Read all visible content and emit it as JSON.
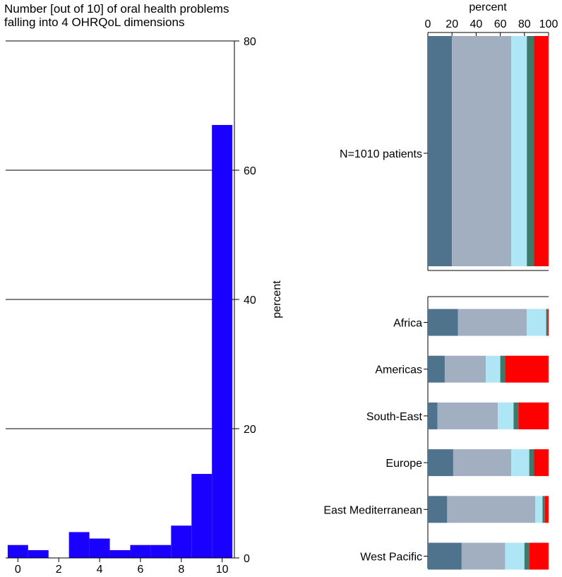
{
  "chart_data": [
    {
      "type": "bar",
      "title_lines": [
        "Number [out of 10] of oral health problems",
        "falling into 4 OHRQoL dimensions"
      ],
      "xlabel": "",
      "ylabel": "percent",
      "x_ticks": [
        "0",
        "2",
        "4",
        "6",
        "8",
        "10"
      ],
      "y_ticks": [
        "0",
        "20",
        "40",
        "60",
        "80"
      ],
      "xlim": [
        -0.6,
        10.6
      ],
      "ylim": [
        0,
        80
      ],
      "categories": [
        "0",
        "1",
        "2",
        "3",
        "4",
        "5",
        "6",
        "7",
        "8",
        "9",
        "10"
      ],
      "values": [
        2.0,
        1.2,
        0.0,
        4.0,
        3.0,
        1.2,
        2.0,
        2.0,
        5.0,
        13.0,
        67.0
      ],
      "bar_color": "#1a00ff",
      "grid": true
    },
    {
      "type": "bar",
      "orientation": "horizontal-stacked",
      "xlabel": "percent",
      "x_ticks": [
        "0",
        "20",
        "40",
        "60",
        "80",
        "100"
      ],
      "xlim": [
        0,
        100
      ],
      "segment_colors": [
        "#4f738d",
        "#a1afc0",
        "#aee6f6",
        "#3c7a6a",
        "#ff0000"
      ],
      "overall": {
        "label": "N=1010 patients",
        "values": [
          20,
          49,
          13,
          6,
          12
        ]
      },
      "regions": [
        {
          "label": "Africa",
          "values": [
            25,
            57,
            16,
            1,
            1
          ]
        },
        {
          "label": "Americas",
          "values": [
            14,
            34,
            12,
            4,
            36
          ]
        },
        {
          "label": "South-East",
          "values": [
            8,
            50,
            13,
            4,
            25
          ]
        },
        {
          "label": "Europe",
          "values": [
            21,
            48,
            15,
            4,
            12
          ]
        },
        {
          "label": "East Mediterranean",
          "values": [
            16,
            73,
            6,
            2,
            3
          ]
        },
        {
          "label": "West Pacific",
          "values": [
            28,
            36,
            16,
            4,
            16
          ]
        }
      ]
    }
  ]
}
